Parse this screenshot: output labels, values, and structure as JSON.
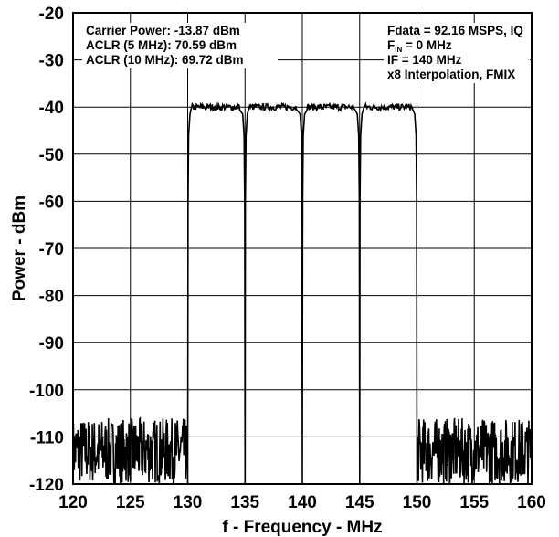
{
  "chart_data": {
    "type": "line",
    "xlabel": "f - Frequency - MHz",
    "ylabel": "Power - dBm",
    "xlim": [
      120,
      160
    ],
    "ylim": [
      -120,
      -20
    ],
    "x_ticks": [
      120,
      125,
      130,
      135,
      140,
      145,
      150,
      155,
      160
    ],
    "y_ticks": [
      -20,
      -30,
      -40,
      -50,
      -60,
      -70,
      -80,
      -90,
      -100,
      -110,
      -120
    ],
    "grid": true,
    "line_color": "#000000",
    "noise_floor_dbm": -113,
    "carriers": [
      {
        "center_mhz": 132.5,
        "level_dbm": -40
      },
      {
        "center_mhz": 137.5,
        "level_dbm": -40
      },
      {
        "center_mhz": 142.5,
        "level_dbm": -40
      },
      {
        "center_mhz": 147.5,
        "level_dbm": -40
      }
    ],
    "annotations_left": [
      "Carrier Power: -13.87 dBm",
      "ACLR (5 MHz): 70.59 dBm",
      "ACLR (10 MHz): 69.72 dBm"
    ],
    "annotations_right": {
      "fdata": "Fdata = 92.16 MSPS, IQ",
      "fin_main": "F",
      "fin_sub": "IN",
      "fin_rest": " = 0 MHz",
      "if": "IF = 140 MHz",
      "interp": "x8 Interpolation, FMIX"
    }
  }
}
